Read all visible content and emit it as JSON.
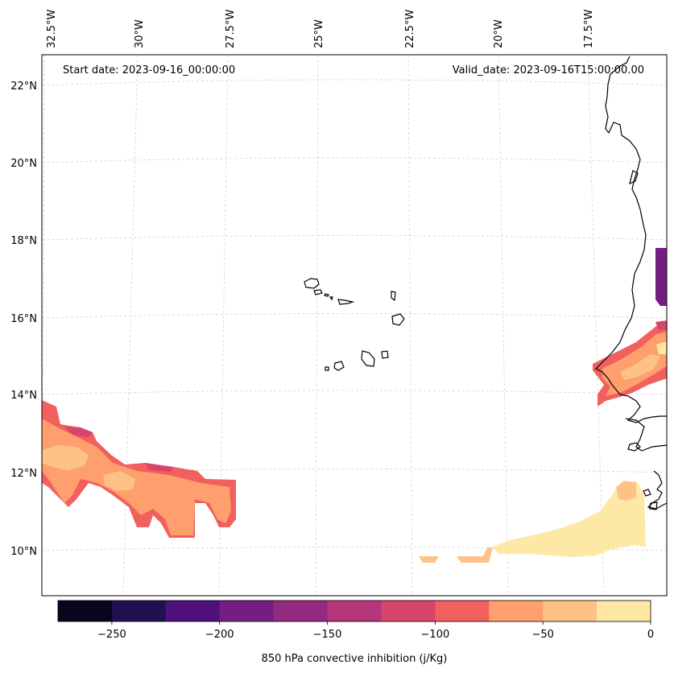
{
  "header": {
    "start_date": "Start date: 2023-09-16_00:00:00",
    "valid_date": "Valid_date: 2023-09-16T15:00:00.00"
  },
  "longitude_labels": [
    "32.5°W",
    "30°W",
    "27.5°W",
    "25°W",
    "22.5°W",
    "20°W",
    "17.5°W"
  ],
  "latitude_labels": [
    "22°N",
    "20°N",
    "18°N",
    "16°N",
    "14°N",
    "12°N",
    "10°N"
  ],
  "colorbar": {
    "label": "850 hPa convective inhibition (j/Kg)",
    "tick_labels": [
      "−250",
      "−200",
      "−150",
      "−100",
      "−50",
      "0"
    ],
    "bounds": [
      -275,
      -250,
      -225,
      -200,
      -175,
      -150,
      -125,
      -100,
      -75,
      -50,
      -25,
      0
    ],
    "colors": [
      "#07061c",
      "#21114e",
      "#4f117b",
      "#721f81",
      "#932a80",
      "#b5367a",
      "#d8456b",
      "#f1605d",
      "#fe9f6d",
      "#fec287",
      "#fde9a5"
    ]
  }
}
